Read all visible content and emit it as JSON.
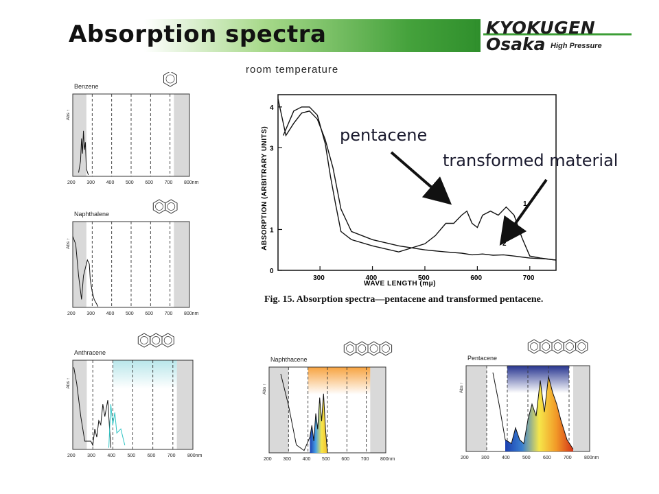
{
  "page": {
    "title": "Absorption spectra",
    "subtitle": "room temperature",
    "logo": {
      "line1": "KYOKUGEN",
      "line2": "Osaka",
      "line2_sub": "High Pressure"
    },
    "colors": {
      "title_green": "#45a23c",
      "arrow": "#111111"
    }
  },
  "main_chart_labels": {
    "pentacene": "pentacene",
    "transformed": "transformed material",
    "caption_fig": "Fig. 15.",
    "caption_text": "Absorption spectra—pentacene and transformed pentacene.",
    "curve_label_1": "1",
    "curve_label_2": "2"
  },
  "chart_data": [
    {
      "type": "line",
      "xlabel": "WAVE LENGTH (mμ)",
      "ylabel": "ABSORPTION (ARBITRARY UNITS)",
      "xlim": [
        220,
        750
      ],
      "ylim": [
        0,
        4.3
      ],
      "xticks": [
        300,
        400,
        500,
        600,
        700
      ],
      "yticks": [
        0,
        1,
        3,
        4
      ],
      "series": [
        {
          "name": "1",
          "x": [
            230,
            250,
            265,
            280,
            295,
            310,
            320,
            330,
            340,
            360,
            400,
            450,
            500,
            520,
            540,
            555,
            570,
            580,
            590,
            600,
            610,
            625,
            640,
            655,
            670,
            685,
            700,
            720,
            750
          ],
          "y": [
            3.3,
            3.9,
            4.0,
            4.0,
            3.8,
            3.1,
            2.3,
            1.6,
            0.95,
            0.75,
            0.6,
            0.45,
            0.65,
            0.85,
            1.15,
            1.15,
            1.35,
            1.45,
            1.15,
            1.05,
            1.35,
            1.45,
            1.35,
            1.55,
            1.35,
            0.8,
            0.35,
            0.3,
            0.25
          ]
        },
        {
          "name": "2",
          "x": [
            220,
            235,
            250,
            265,
            280,
            295,
            310,
            325,
            340,
            360,
            400,
            450,
            500,
            540,
            570,
            590,
            610,
            630,
            650,
            670,
            700,
            730,
            750
          ],
          "y": [
            4.2,
            3.3,
            3.6,
            3.85,
            3.9,
            3.7,
            3.2,
            2.5,
            1.5,
            0.95,
            0.75,
            0.6,
            0.5,
            0.45,
            0.42,
            0.38,
            0.4,
            0.37,
            0.38,
            0.35,
            0.3,
            0.28,
            0.25
          ]
        }
      ]
    },
    {
      "type": "line",
      "title": "Benzene",
      "ylabel": "Abs ↑",
      "xlabel": "nm",
      "xticks": [
        "200",
        "300",
        "400",
        "500",
        "600",
        "700",
        "800nm"
      ],
      "series": [
        {
          "x": [
            230,
            240,
            245,
            250,
            255,
            260,
            265,
            270,
            280
          ],
          "y": [
            0.05,
            0.2,
            0.5,
            0.3,
            0.6,
            0.35,
            0.45,
            0.1,
            0.02
          ]
        }
      ]
    },
    {
      "type": "line",
      "title": "Naphthalene",
      "ylabel": "Abs ↑",
      "xlabel": "nm",
      "xticks": [
        "200",
        "300",
        "400",
        "500",
        "600",
        "700",
        "800nm"
      ],
      "series": [
        {
          "x": [
            200,
            215,
            230,
            245,
            255,
            265,
            275,
            285,
            290,
            300,
            310,
            330
          ],
          "y": [
            0.9,
            0.8,
            0.4,
            0.1,
            0.4,
            0.5,
            0.6,
            0.55,
            0.35,
            0.2,
            0.1,
            0.01
          ]
        }
      ]
    },
    {
      "type": "line",
      "title": "Anthracene",
      "ylabel": "Abs ↑",
      "xlabel": "nm",
      "xticks": [
        "200",
        "300",
        "400",
        "500",
        "600",
        "700",
        "800nm"
      ],
      "series": [
        {
          "x": [
            205,
            220,
            240,
            260,
            290,
            300,
            310,
            320,
            330,
            340,
            350,
            360,
            375,
            390
          ],
          "y": [
            1.0,
            0.8,
            0.4,
            0.1,
            0.1,
            0.05,
            0.25,
            0.15,
            0.35,
            0.3,
            0.55,
            0.4,
            0.6,
            0.02
          ]
        }
      ]
    },
    {
      "type": "line",
      "title": "Naphthacene",
      "ylabel": "Abs ↑",
      "xlabel": "nm",
      "xticks": [
        "200",
        "300",
        "400",
        "500",
        "600",
        "700",
        "800nm"
      ],
      "series": [
        {
          "x": [
            260,
            300,
            340,
            380,
            410,
            420,
            430,
            440,
            450,
            460,
            470,
            480,
            490,
            500
          ],
          "y": [
            1.0,
            0.6,
            0.1,
            0.03,
            0.2,
            0.35,
            0.15,
            0.5,
            0.3,
            0.7,
            0.4,
            0.75,
            0.3,
            0.0
          ]
        }
      ]
    },
    {
      "type": "line",
      "title": "Pentacene",
      "ylabel": "Abs ↑",
      "xlabel": "nm",
      "xticks": [
        "200",
        "300",
        "400",
        "500",
        "600",
        "700",
        "800nm"
      ],
      "series": [
        {
          "x": [
            330,
            360,
            390,
            420,
            440,
            460,
            480,
            500,
            520,
            540,
            560,
            580,
            600,
            620,
            640,
            660,
            690,
            720
          ],
          "y": [
            1.0,
            0.6,
            0.15,
            0.1,
            0.3,
            0.15,
            0.1,
            0.4,
            0.6,
            0.45,
            0.9,
            0.5,
            0.95,
            0.75,
            0.6,
            0.4,
            0.15,
            0.03
          ]
        }
      ]
    }
  ]
}
